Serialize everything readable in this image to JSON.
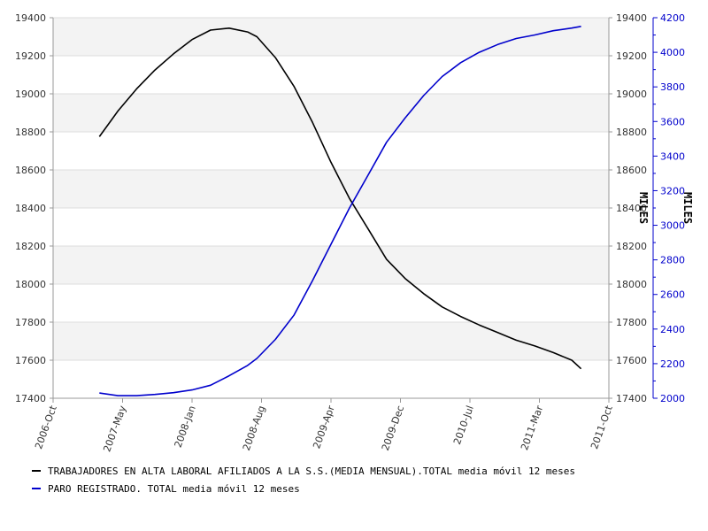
{
  "chart_data": {
    "type": "line",
    "x_tick_labels": [
      "2006-Oct",
      "2007-May",
      "2008-Jan",
      "2008-Aug",
      "2009-Apr",
      "2009-Dec",
      "2010-Jul",
      "2011-Mar",
      "2011-Oct"
    ],
    "xlim": [
      "2006-10",
      "2011-10"
    ],
    "y_left": {
      "ylim": [
        17400,
        19400
      ],
      "ticks": [
        17400,
        17600,
        17800,
        18000,
        18200,
        18400,
        18600,
        18800,
        19000,
        19200,
        19400
      ],
      "color": "#000000"
    },
    "y_right_inner": {
      "label": "MILES",
      "ticks": [
        17400,
        17600,
        17800,
        18000,
        18200,
        18400,
        18600,
        18800,
        19000,
        19200,
        19400
      ],
      "color": "#000000"
    },
    "y_right_outer": {
      "label": "MILES",
      "ylim": [
        2000,
        4200
      ],
      "ticks": [
        2000,
        2200,
        2400,
        2600,
        2800,
        3000,
        3200,
        3400,
        3600,
        3800,
        4000,
        4200
      ],
      "color": "#0000cc"
    },
    "grid": true,
    "legend_position": "bottom",
    "series": [
      {
        "name": "TRABAJADORES EN ALTA LABORAL AFILIADOS A LA S.S.(MEDIA MENSUAL).TOTAL media móvil 12 meses",
        "axis": "left",
        "color": "#000000",
        "x": [
          "2007-03",
          "2007-05",
          "2007-07",
          "2007-09",
          "2007-11",
          "2008-01",
          "2008-03",
          "2008-05",
          "2008-07",
          "2008-08",
          "2008-10",
          "2008-12",
          "2009-02",
          "2009-04",
          "2009-06",
          "2009-08",
          "2009-10",
          "2009-12",
          "2010-02",
          "2010-04",
          "2010-06",
          "2010-08",
          "2010-10",
          "2010-12",
          "2011-02",
          "2011-04",
          "2011-06",
          "2011-07"
        ],
        "values": [
          18775,
          18910,
          19025,
          19125,
          19210,
          19285,
          19335,
          19345,
          19325,
          19300,
          19190,
          19040,
          18850,
          18640,
          18450,
          18290,
          18130,
          18030,
          17950,
          17880,
          17830,
          17785,
          17745,
          17705,
          17675,
          17640,
          17600,
          17555
        ]
      },
      {
        "name": "PARO REGISTRADO. TOTAL media móvil 12 meses",
        "axis": "right",
        "color": "#0000cc",
        "x": [
          "2007-03",
          "2007-05",
          "2007-07",
          "2007-09",
          "2007-11",
          "2008-01",
          "2008-03",
          "2008-05",
          "2008-07",
          "2008-08",
          "2008-10",
          "2008-12",
          "2009-02",
          "2009-04",
          "2009-06",
          "2009-08",
          "2009-10",
          "2009-12",
          "2010-02",
          "2010-04",
          "2010-06",
          "2010-08",
          "2010-10",
          "2010-12",
          "2011-02",
          "2011-04",
          "2011-06",
          "2011-07"
        ],
        "values": [
          2030,
          2015,
          2015,
          2022,
          2032,
          2048,
          2075,
          2130,
          2190,
          2230,
          2340,
          2480,
          2680,
          2890,
          3100,
          3290,
          3480,
          3620,
          3750,
          3860,
          3940,
          4000,
          4045,
          4080,
          4100,
          4125,
          4140,
          4150
        ]
      }
    ]
  }
}
